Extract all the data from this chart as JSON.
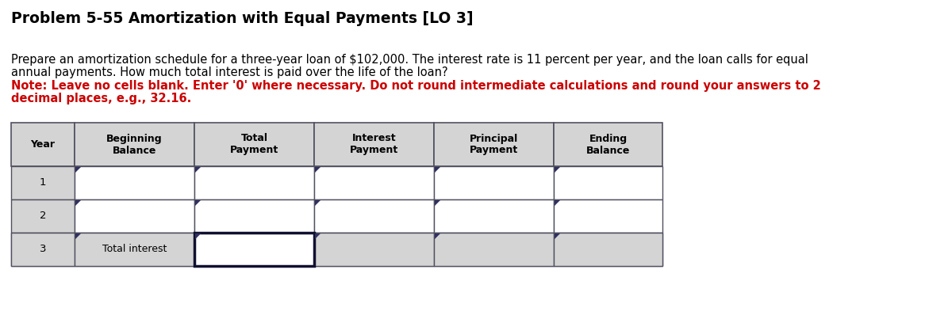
{
  "title": "Problem 5-55 Amortization with Equal Payments [LO 3]",
  "title_fontsize": 13.5,
  "body_text_line1": "Prepare an amortization schedule for a three-year loan of $102,000. The interest rate is 11 percent per year, and the loan calls for equal",
  "body_text_line2": "annual payments. How much total interest is paid over the life of the loan?",
  "note_line1": "Note: Leave no cells blank. Enter '0' where necessary. Do not round intermediate calculations and round your answers to 2",
  "note_line2": "decimal places, e.g., 32.16.",
  "note_color": "#CC0000",
  "body_fontsize": 10.5,
  "note_fontsize": 10.5,
  "col_headers": [
    "Year",
    "Beginning\nBalance",
    "Total\nPayment",
    "Interest\nPayment",
    "Principal\nPayment",
    "Ending\nBalance"
  ],
  "year_labels": [
    "1",
    "2",
    "3"
  ],
  "total_interest_label": "Total interest",
  "bg_color": "#ffffff",
  "table_header_bg": "#d4d4d4",
  "table_cell_bg": "#ffffff",
  "table_border_color": "#505060",
  "input_cell_border": "#101030",
  "tri_color": "#303060",
  "fig_width": 12.0,
  "fig_height": 4.03,
  "dpi": 100
}
